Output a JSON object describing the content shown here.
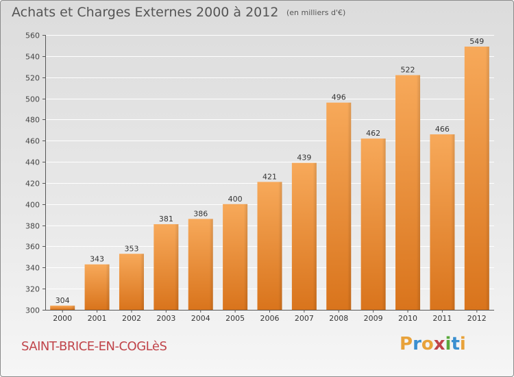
{
  "title": "Achats et Charges Externes 2000 à 2012",
  "unit_note": "(en milliers d'€)",
  "commune": "SAINT-BRICE-EN-COGLèS",
  "logo": {
    "text": "Proxiti",
    "letters": [
      {
        "ch": "P",
        "color": "#e8a23a"
      },
      {
        "ch": "r",
        "color": "#3a8fd0"
      },
      {
        "ch": "o",
        "color": "#e8a23a"
      },
      {
        "ch": "x",
        "color": "#c0444a"
      },
      {
        "ch": "i",
        "color": "#5aa83c"
      },
      {
        "ch": "t",
        "color": "#3a8fd0"
      },
      {
        "ch": "i",
        "color": "#e8a23a"
      }
    ]
  },
  "chart_data": {
    "type": "bar",
    "categories": [
      "2000",
      "2001",
      "2002",
      "2003",
      "2004",
      "2005",
      "2006",
      "2007",
      "2008",
      "2009",
      "2010",
      "2011",
      "2012"
    ],
    "values": [
      304,
      343,
      353,
      381,
      386,
      400,
      421,
      439,
      496,
      462,
      522,
      466,
      549
    ],
    "title": "Achats et Charges Externes 2000 à 2012",
    "xlabel": "",
    "ylabel": "",
    "ylim": [
      300,
      560
    ],
    "yticks": [
      300,
      320,
      340,
      360,
      380,
      400,
      420,
      440,
      460,
      480,
      500,
      520,
      540,
      560
    ],
    "grid": true,
    "bar_color_top": "#f7a95a",
    "bar_color_bottom": "#d9741c",
    "grid_color": "#ffffff"
  }
}
